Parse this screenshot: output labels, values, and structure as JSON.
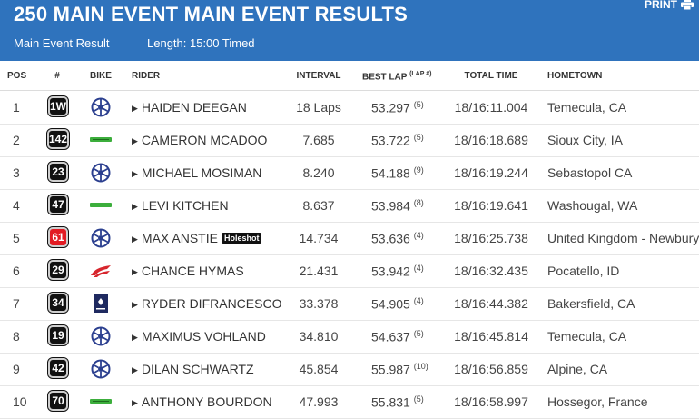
{
  "header": {
    "title": "250 MAIN EVENT MAIN EVENT RESULTS",
    "result_label": "Main Event Result",
    "length_label": "Length: 15:00 Timed",
    "print_label": "PRINT",
    "background": "#2f73bd"
  },
  "columns": {
    "pos": "POS",
    "num": "#",
    "bike": "BIKE",
    "rider": "RIDER",
    "interval": "INTERVAL",
    "best_lap": "BEST LAP",
    "best_lap_sup": "(LAP #)",
    "total_time": "TOTAL TIME",
    "hometown": "HOMETOWN"
  },
  "rows": [
    {
      "pos": "1",
      "num": "1W",
      "bike": "yamaha",
      "rider": "HAIDEN DEEGAN",
      "interval": "18 Laps",
      "best_lap": "53.297",
      "lap": "(5)",
      "total": "18/16:11.004",
      "hometown": "Temecula, CA"
    },
    {
      "pos": "2",
      "num": "142",
      "bike": "kawasaki",
      "rider": "CAMERON MCADOO",
      "interval": "7.685",
      "best_lap": "53.722",
      "lap": "(5)",
      "total": "18/16:18.689",
      "hometown": "Sioux City, IA"
    },
    {
      "pos": "3",
      "num": "23",
      "bike": "yamaha",
      "rider": "MICHAEL MOSIMAN",
      "interval": "8.240",
      "best_lap": "54.188",
      "lap": "(9)",
      "total": "18/16:19.244",
      "hometown": "Sebastopol CA"
    },
    {
      "pos": "4",
      "num": "47",
      "bike": "kawasaki",
      "rider": "LEVI KITCHEN",
      "interval": "8.637",
      "best_lap": "53.984",
      "lap": "(8)",
      "total": "18/16:19.641",
      "hometown": "Washougal, WA"
    },
    {
      "pos": "5",
      "num": "61",
      "bike": "yamaha",
      "rider": "MAX ANSTIE",
      "holeshot": "Holeshot",
      "interval": "14.734",
      "best_lap": "53.636",
      "lap": "(4)",
      "total": "18/16:25.738",
      "hometown": "United Kingdom - Newbury"
    },
    {
      "pos": "6",
      "num": "29",
      "bike": "honda",
      "rider": "CHANCE HYMAS",
      "interval": "21.431",
      "best_lap": "53.942",
      "lap": "(4)",
      "total": "18/16:32.435",
      "hometown": "Pocatello, ID"
    },
    {
      "pos": "7",
      "num": "34",
      "bike": "husqvarna",
      "rider": "RYDER DIFRANCESCO",
      "interval": "33.378",
      "best_lap": "54.905",
      "lap": "(4)",
      "total": "18/16:44.382",
      "hometown": "Bakersfield, CA"
    },
    {
      "pos": "8",
      "num": "19",
      "bike": "yamaha",
      "rider": "MAXIMUS VOHLAND",
      "interval": "34.810",
      "best_lap": "54.637",
      "lap": "(5)",
      "total": "18/16:45.814",
      "hometown": "Temecula, CA"
    },
    {
      "pos": "9",
      "num": "42",
      "bike": "yamaha",
      "rider": "DILAN SCHWARTZ",
      "interval": "45.854",
      "best_lap": "55.987",
      "lap": "(10)",
      "total": "18/16:56.859",
      "hometown": "Alpine, CA"
    },
    {
      "pos": "10",
      "num": "70",
      "bike": "kawasaki",
      "rider": "ANTHONY BOURDON",
      "interval": "47.993",
      "best_lap": "55.831",
      "lap": "(5)",
      "total": "18/16:58.997",
      "hometown": "Hossegor, France"
    }
  ],
  "colors": {
    "plate_default": "#111111",
    "plate_holeshot": "#e21b23",
    "yamaha": "#2b3f8f",
    "kawasaki": "#3cae3c",
    "honda": "#d7262d",
    "husqvarna": "#1f2a60"
  }
}
